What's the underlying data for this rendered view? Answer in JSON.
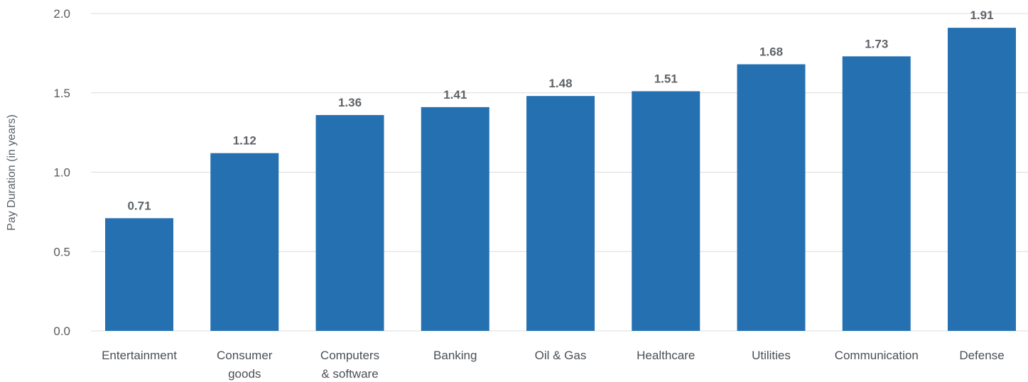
{
  "chart_data": {
    "type": "bar",
    "title": "",
    "xlabel": "",
    "ylabel": "Pay Duration (in years)",
    "ylim": [
      0,
      2.0
    ],
    "yticks": [
      "0.0",
      "0.5",
      "1.0",
      "1.5",
      "2.0"
    ],
    "grid": true,
    "bar_color": "#2470b1",
    "categories": [
      [
        "Entertainment"
      ],
      [
        "Consumer",
        "goods"
      ],
      [
        "Computers",
        "& software"
      ],
      [
        "Banking"
      ],
      [
        "Oil & Gas"
      ],
      [
        "Healthcare"
      ],
      [
        "Utilities"
      ],
      [
        "Communication"
      ],
      [
        "Defense"
      ]
    ],
    "values": [
      0.71,
      1.12,
      1.36,
      1.41,
      1.48,
      1.51,
      1.68,
      1.73,
      1.91
    ],
    "labels": [
      "0.71",
      "1.12",
      "1.36",
      "1.41",
      "1.48",
      "1.51",
      "1.68",
      "1.73",
      "1.91"
    ]
  }
}
